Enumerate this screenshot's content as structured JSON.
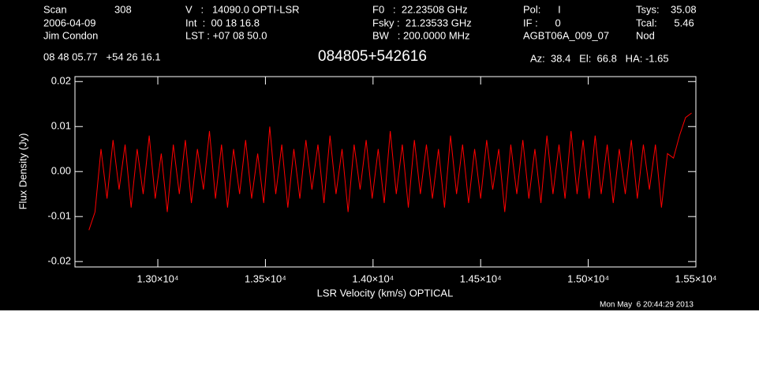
{
  "header": {
    "col1": [
      "Scan",
      "2006-04-09",
      "Jim Condon"
    ],
    "scan_number": "308",
    "col2": [
      "V   :   14090.0 OPTI-LSR",
      "Int  :  00 18 16.8",
      "LST : +07 08 50.0"
    ],
    "col3": [
      "F0   :  22.23508 GHz",
      "Fsky :  21.23533 GHz",
      "BW   : 200.0000 MHz"
    ],
    "col4": [
      "Pol:      I",
      "IF :      0",
      "AGBT06A_009_07"
    ],
    "col5": [
      "Tsys:    35.08",
      "Tcal:      5.46",
      "Nod"
    ],
    "coords": "08 48 05.77   +54 26 16.1",
    "source": "084805+542616",
    "pointing": "Az:  38.4   El:  66.8   HA: -1.65"
  },
  "footer": {
    "timestamp": "Mon May  6 20:44:29 2013"
  },
  "chart_data": {
    "type": "line",
    "x_label": "LSR Velocity (km/s) OPTICAL",
    "y_label": "Flux Density (Jy)",
    "color": "#ff0000",
    "xlim": [
      12615,
      15500
    ],
    "ylim": [
      -0.0212,
      0.0211
    ],
    "xticks": [
      {
        "value": 13000,
        "label": "1.30×10⁴"
      },
      {
        "value": 13500,
        "label": "1.35×10⁴"
      },
      {
        "value": 14000,
        "label": "1.40×10⁴"
      },
      {
        "value": 14500,
        "label": "1.45×10⁴"
      },
      {
        "value": 15000,
        "label": "1.50×10⁴"
      },
      {
        "value": 15500,
        "label": "1.55×10⁴"
      }
    ],
    "yticks": [
      0.02,
      0.01,
      {
        "value": 0,
        "label": "0.00"
      },
      -0.01,
      -0.02
    ],
    "x": [
      12680,
      12708,
      12736,
      12764,
      12792,
      12820,
      12848,
      12876,
      12904,
      12932,
      12960,
      12988,
      13016,
      13044,
      13072,
      13100,
      13128,
      13156,
      13184,
      13212,
      13240,
      13268,
      13296,
      13324,
      13352,
      13380,
      13408,
      13436,
      13464,
      13492,
      13520,
      13548,
      13576,
      13604,
      13632,
      13660,
      13688,
      13716,
      13744,
      13772,
      13800,
      13828,
      13856,
      13884,
      13912,
      13940,
      13968,
      13996,
      14024,
      14052,
      14080,
      14108,
      14136,
      14164,
      14192,
      14220,
      14248,
      14276,
      14304,
      14332,
      14360,
      14388,
      14416,
      14444,
      14472,
      14500,
      14528,
      14556,
      14584,
      14612,
      14640,
      14668,
      14696,
      14724,
      14752,
      14780,
      14808,
      14836,
      14864,
      14892,
      14920,
      14948,
      14976,
      15004,
      15032,
      15060,
      15088,
      15116,
      15144,
      15172,
      15200,
      15228,
      15256,
      15284,
      15312,
      15340,
      15368,
      15396,
      15424,
      15452,
      15480
    ],
    "values": [
      -0.013,
      -0.009,
      0.005,
      -0.006,
      0.007,
      -0.004,
      0.006,
      -0.008,
      0.005,
      -0.005,
      0.008,
      -0.006,
      0.004,
      -0.009,
      0.006,
      -0.005,
      0.007,
      -0.007,
      0.005,
      -0.004,
      0.009,
      -0.006,
      0.006,
      -0.008,
      0.005,
      -0.005,
      0.007,
      -0.006,
      0.004,
      -0.007,
      0.01,
      -0.005,
      0.006,
      -0.008,
      0.005,
      -0.006,
      0.007,
      -0.004,
      0.006,
      -0.007,
      0.008,
      -0.005,
      0.005,
      -0.009,
      0.006,
      -0.004,
      0.007,
      -0.006,
      0.005,
      -0.007,
      0.009,
      -0.005,
      0.006,
      -0.008,
      0.007,
      -0.005,
      0.006,
      -0.006,
      0.005,
      -0.008,
      0.008,
      -0.005,
      0.006,
      -0.007,
      0.005,
      -0.006,
      0.007,
      -0.004,
      0.005,
      -0.009,
      0.006,
      -0.005,
      0.007,
      -0.006,
      0.005,
      -0.007,
      0.008,
      -0.005,
      0.006,
      -0.006,
      0.009,
      -0.005,
      0.007,
      -0.006,
      0.008,
      -0.005,
      0.006,
      -0.007,
      0.005,
      -0.005,
      0.007,
      -0.006,
      0.006,
      -0.004,
      0.006,
      -0.008,
      0.004,
      0.003,
      0.008,
      0.012,
      0.013
    ]
  }
}
